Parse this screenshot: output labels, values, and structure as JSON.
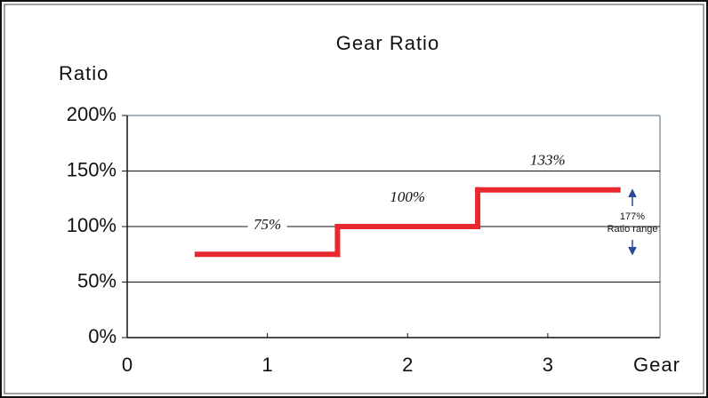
{
  "chart_data": {
    "type": "step",
    "title": "Gear Ratio",
    "y_label": "Ratio",
    "x_label": "Gear",
    "x": [
      1,
      2,
      3
    ],
    "values": [
      75,
      100,
      133
    ],
    "value_labels": [
      "75%",
      "100%",
      "133%"
    ],
    "color": "#e8282e",
    "xlim": [
      0,
      3.8
    ],
    "xticks": [
      0,
      1,
      2,
      3
    ],
    "ylim": [
      0,
      200
    ],
    "yticks": [
      {
        "value": 0,
        "label": "0%"
      },
      {
        "value": 50,
        "label": "50%"
      },
      {
        "value": 100,
        "label": "100%"
      },
      {
        "value": 150,
        "label": "150%"
      },
      {
        "value": 200,
        "label": "200%"
      }
    ],
    "grid": true,
    "annotation": [
      "177%",
      "Ratio range"
    ]
  }
}
